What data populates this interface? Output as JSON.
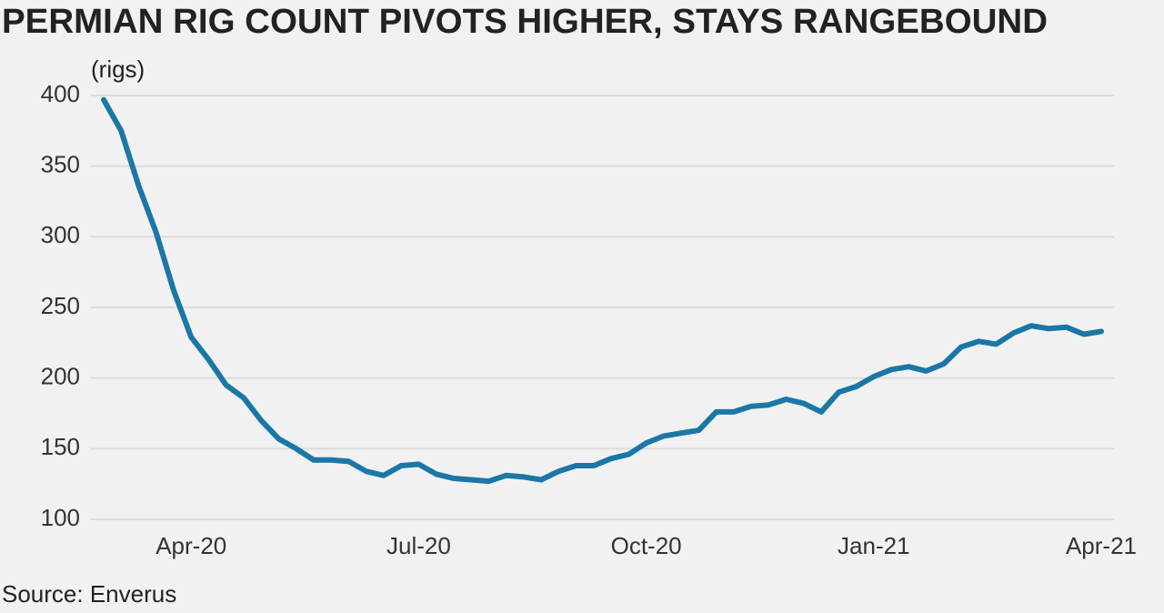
{
  "chart_data": {
    "type": "line",
    "title": "PERMIAN RIG COUNT PIVOTS HIGHER, STAYS RANGEBOUND",
    "y_label": "(rigs)",
    "source": "Source: Enverus",
    "categories": [
      null,
      null,
      null,
      null,
      null,
      "Apr-20",
      null,
      null,
      null,
      null,
      null,
      null,
      null,
      null,
      null,
      null,
      null,
      null,
      "Jul-20",
      null,
      null,
      null,
      null,
      null,
      null,
      null,
      null,
      null,
      null,
      null,
      null,
      "Oct-20",
      null,
      null,
      null,
      null,
      null,
      null,
      null,
      null,
      null,
      null,
      null,
      null,
      "Jan-21",
      null,
      null,
      null,
      null,
      null,
      null,
      null,
      null,
      null,
      null,
      null,
      null,
      "Apr-21"
    ],
    "values": [
      397,
      375,
      336,
      303,
      262,
      229,
      213,
      195,
      186,
      170,
      157,
      150,
      142,
      142,
      141,
      134,
      131,
      138,
      139,
      132,
      129,
      128,
      127,
      131,
      130,
      128,
      134,
      138,
      138,
      143,
      146,
      154,
      159,
      161,
      163,
      176,
      176,
      180,
      181,
      185,
      182,
      176,
      190,
      194,
      201,
      206,
      208,
      205,
      210,
      222,
      226,
      224,
      232,
      237,
      235,
      236,
      231,
      233
    ],
    "color": "#1a77a6",
    "ylim": [
      100,
      400
    ],
    "yticks": [
      100,
      150,
      200,
      250,
      300,
      350,
      400
    ],
    "grid": true
  }
}
